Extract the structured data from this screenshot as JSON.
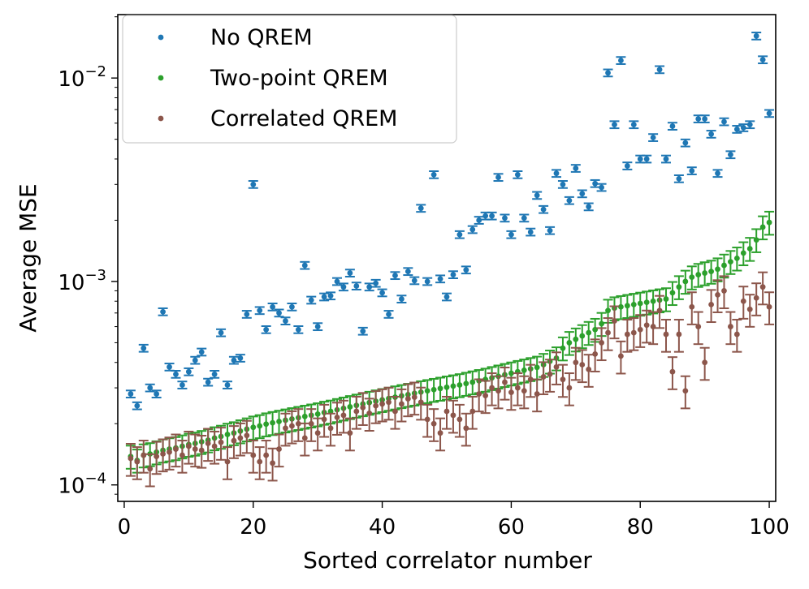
{
  "chart_data": {
    "type": "scatter",
    "xlabel": "Sorted correlator number",
    "ylabel": "Average MSE",
    "xlim": [
      -1,
      101
    ],
    "ylim": [
      8.3e-05,
      0.0205
    ],
    "yscale": "log",
    "x_ticks": [
      0,
      20,
      40,
      60,
      80,
      100
    ],
    "y_ticks": [
      {
        "value": 0.0001,
        "base": "10",
        "exp": "−4"
      },
      {
        "value": 0.001,
        "base": "10",
        "exp": "−3"
      },
      {
        "value": 0.01,
        "base": "10",
        "exp": "−2"
      }
    ],
    "legend": {
      "position": "top-left"
    },
    "series": [
      {
        "name": "No QREM",
        "color": "#1f77b4",
        "err_frac": 0.04,
        "y": [
          0.00028,
          0.000245,
          0.00047,
          0.0003,
          0.00028,
          0.00071,
          0.00038,
          0.00035,
          0.00031,
          0.00036,
          0.00041,
          0.00045,
          0.00032,
          0.00035,
          0.00056,
          0.00031,
          0.00041,
          0.00042,
          0.00069,
          0.003,
          0.00072,
          0.00058,
          0.00075,
          0.0007,
          0.00064,
          0.00075,
          0.00058,
          0.0012,
          0.00081,
          0.0006,
          0.00084,
          0.00085,
          0.001,
          0.00094,
          0.0011,
          0.00095,
          0.00057,
          0.00094,
          0.00098,
          0.00088,
          0.00069,
          0.00107,
          0.00082,
          0.00112,
          0.00101,
          0.00229,
          0.001,
          0.00335,
          0.00103,
          0.00084,
          0.00108,
          0.0017,
          0.00114,
          0.0018,
          0.002,
          0.0021,
          0.0021,
          0.00325,
          0.00205,
          0.0017,
          0.00335,
          0.00205,
          0.00175,
          0.00265,
          0.00226,
          0.00178,
          0.0034,
          0.003,
          0.0025,
          0.0036,
          0.0027,
          0.00233,
          0.00303,
          0.0029,
          0.0106,
          0.0059,
          0.0122,
          0.0037,
          0.0059,
          0.004,
          0.004,
          0.0051,
          0.011,
          0.004,
          0.0058,
          0.0032,
          0.0048,
          0.0035,
          0.0063,
          0.0063,
          0.0053,
          0.0034,
          0.0061,
          0.0042,
          0.0056,
          0.0057,
          0.0059,
          0.0161,
          0.0123,
          0.0067
        ]
      },
      {
        "name": "Two-point QREM",
        "color": "#2ca02c",
        "err_frac": 0.13,
        "y": [
          0.000138,
          0.000132,
          0.00014,
          0.000142,
          0.000145,
          0.000148,
          0.00015,
          0.000152,
          0.000155,
          0.000158,
          0.00016,
          0.000163,
          0.000166,
          0.00017,
          0.000173,
          0.000177,
          0.00018,
          0.000184,
          0.000188,
          0.000192,
          0.000195,
          0.000199,
          0.000202,
          0.000205,
          0.000208,
          0.000211,
          0.000214,
          0.000217,
          0.00022,
          0.000223,
          0.000227,
          0.00023,
          0.000234,
          0.000238,
          0.000242,
          0.000246,
          0.00025,
          0.000254,
          0.000258,
          0.000262,
          0.000266,
          0.00027,
          0.000274,
          0.000278,
          0.000282,
          0.000286,
          0.00029,
          0.000294,
          0.000298,
          0.000302,
          0.000306,
          0.00031,
          0.000315,
          0.00032,
          0.000325,
          0.00033,
          0.000336,
          0.000342,
          0.000348,
          0.000354,
          0.00036,
          0.000366,
          0.000372,
          0.000378,
          0.00039,
          0.000405,
          0.00042,
          0.00047,
          0.0005,
          0.00052,
          0.00054,
          0.00056,
          0.00058,
          0.00062,
          0.00072,
          0.00074,
          0.00075,
          0.00076,
          0.00077,
          0.00078,
          0.00079,
          0.0008,
          0.00081,
          0.00082,
          0.00088,
          0.00094,
          0.001,
          0.00105,
          0.00108,
          0.0011,
          0.00112,
          0.00115,
          0.0012,
          0.00125,
          0.0013,
          0.00138,
          0.00145,
          0.0016,
          0.00185,
          0.00195
        ]
      },
      {
        "name": "Correlated QREM",
        "color": "#8c564b",
        "err_frac": 0.18,
        "y": [
          0.000135,
          0.00013,
          0.00014,
          0.00012,
          0.000138,
          0.000142,
          0.000145,
          0.00015,
          0.00014,
          0.000155,
          0.00015,
          0.000148,
          0.00016,
          0.000155,
          0.000162,
          0.00013,
          0.000165,
          0.00017,
          0.000175,
          0.00014,
          0.00013,
          0.00014,
          0.000128,
          0.00015,
          0.00019,
          0.000195,
          0.0002,
          0.00017,
          0.0002,
          0.00018,
          0.00021,
          0.00019,
          0.000215,
          0.00022,
          0.00018,
          0.00023,
          0.00024,
          0.000225,
          0.000245,
          0.00025,
          0.000255,
          0.00023,
          0.00025,
          0.000265,
          0.00027,
          0.000255,
          0.00021,
          0.0002,
          0.00018,
          0.00023,
          0.00022,
          0.00021,
          0.00019,
          0.00023,
          0.00028,
          0.000275,
          0.0003,
          0.00029,
          0.00032,
          0.000285,
          0.0003,
          0.00029,
          0.00033,
          0.00028,
          0.00034,
          0.00035,
          0.00038,
          0.00033,
          0.0003,
          0.0004,
          0.00039,
          0.00037,
          0.00044,
          0.0005,
          0.00056,
          0.00064,
          0.00043,
          0.00055,
          0.00056,
          0.00058,
          0.00061,
          0.0006,
          0.00072,
          0.00055,
          0.00036,
          0.00055,
          0.00029,
          0.00075,
          0.0006,
          0.0004,
          0.00077,
          0.00086,
          0.0009,
          0.0006,
          0.00055,
          0.0008,
          0.00073,
          0.00083,
          0.00094,
          0.00075
        ]
      }
    ]
  }
}
